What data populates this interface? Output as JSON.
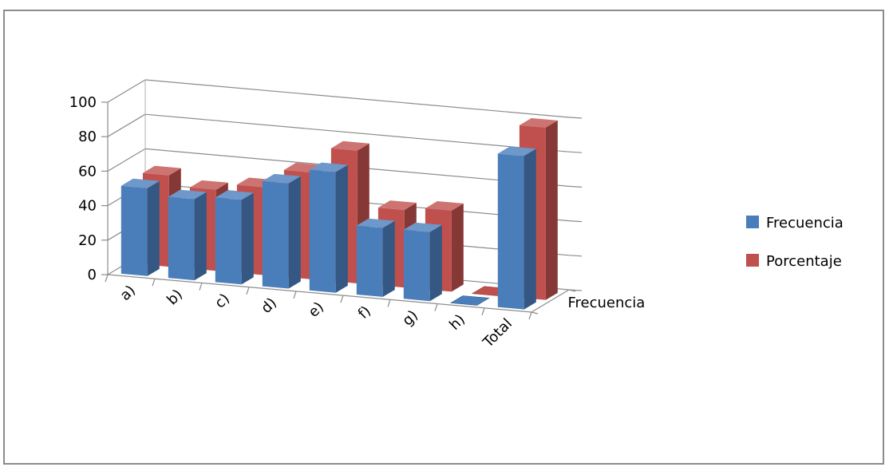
{
  "chart_data": {
    "type": "bar",
    "categories": [
      "a)",
      "b)",
      "c)",
      "d)",
      "e)",
      "f)",
      "g)",
      "h)",
      "Total"
    ],
    "series": [
      {
        "name": "Frecuencia",
        "values": [
          51,
          47,
          49,
          61,
          70,
          40,
          40,
          0,
          89
        ]
      },
      {
        "name": "Porcentaje",
        "values": [
          53,
          47,
          51,
          62,
          77,
          45,
          47,
          0,
          100
        ]
      }
    ],
    "depth_label": "Frecuencia",
    "ylim": [
      0,
      100
    ],
    "yticks": [
      "0",
      "20",
      "40",
      "60",
      "80",
      "100"
    ],
    "legend_position": "right",
    "grid": true,
    "colors": {
      "Frecuencia": "#4a7ebb",
      "Porcentaje": "#c0504d"
    }
  }
}
